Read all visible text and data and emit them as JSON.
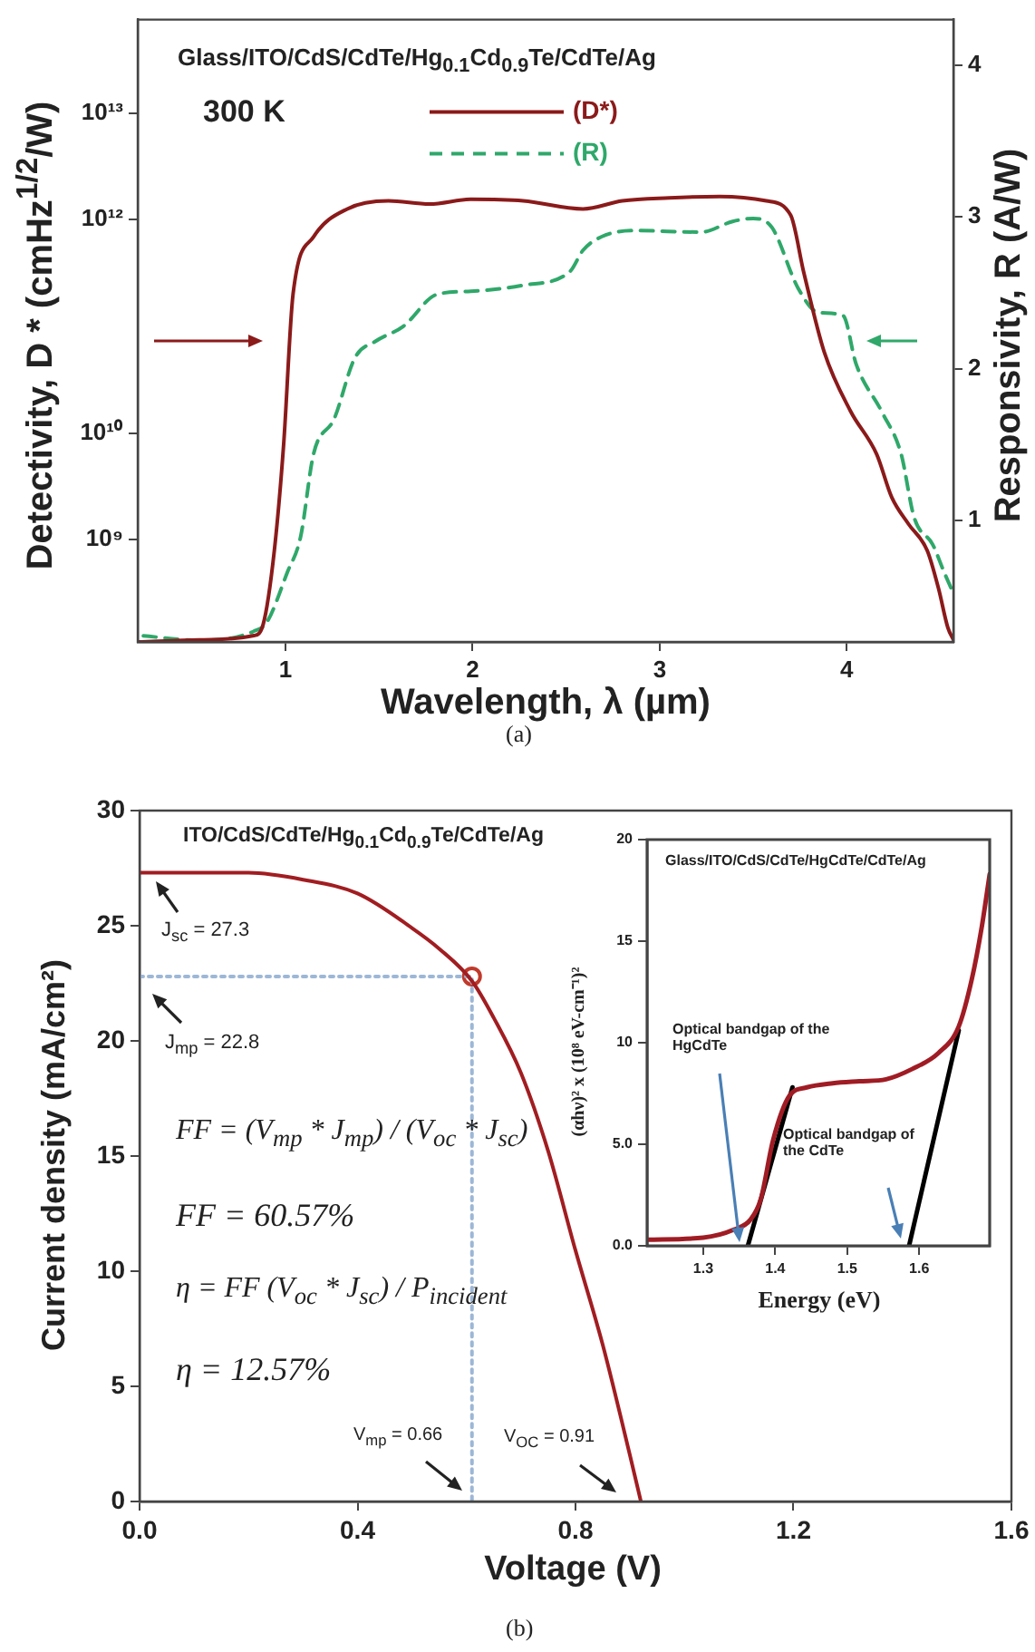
{
  "chart_data": [
    {
      "type": "line",
      "title": "Glass/ITO/CdS/CdTe/Hg$_{0.1}$Cd$_{0.9}$Te/CdTe/Ag",
      "xlabel": "Wavelength, λ (µm)",
      "ylabel": "Detectivity, D * (cmHz$^{1/2}$/W)",
      "y2label": "Responsivity, R (A/W)",
      "annotations": [
        "300 K",
        "(a)"
      ],
      "log": "y",
      "grid": false,
      "legend": "top",
      "marker": "none",
      "xlim": [
        0.21,
        4.57
      ],
      "xticks": [
        1,
        2,
        3,
        4
      ],
      "ylim": [
        110000000.0,
        75000000000000.0
      ],
      "yticks": [
        {
          "value": 1000000000.0,
          "label": "10⁹"
        },
        {
          "value": 10000000000.0,
          "label": "10¹⁰"
        },
        {
          "value": 1000000000000.0,
          "label": "10¹²"
        },
        {
          "value": 10000000000000.0,
          "label": "10¹³"
        }
      ],
      "y2lim": [
        0.2,
        4.3
      ],
      "y2ticks": [
        1,
        2,
        3,
        4
      ],
      "series": [
        {
          "name": "(D*)",
          "color": "#8b1a1a",
          "line_style": "solid",
          "x": [
            0.21,
            0.54,
            0.83,
            0.88,
            0.94,
            0.99,
            1.04,
            1.15,
            1.33,
            1.55,
            1.77,
            1.99,
            2.27,
            2.59,
            2.8,
            3.05,
            3.32,
            3.57,
            3.7,
            3.77,
            3.88,
            4.02,
            4.16,
            4.24,
            4.33,
            4.43,
            4.49,
            4.54,
            4.57
          ],
          "values": [
            110000000.0,
            115000000.0,
            126000000.0,
            160000000.0,
            790000000.0,
            7900000000.0,
            200000000000.0,
            690000000000.0,
            1260000000000.0,
            1500000000000.0,
            1400000000000.0,
            1550000000000.0,
            1500000000000.0,
            1260000000000.0,
            1500000000000.0,
            1600000000000.0,
            1650000000000.0,
            1500000000000.0,
            1100000000000.0,
            320000000000.0,
            57000000000.0,
            16000000000.0,
            6300000000.0,
            2500000000.0,
            1400000000.0,
            790000000.0,
            350000000.0,
            150000000.0,
            115000000.0
          ]
        },
        {
          "name": "(R)",
          "color": "#2fa86a",
          "line_style": "dashed",
          "axis": "y2",
          "x": [
            0.24,
            0.54,
            0.83,
            0.9,
            1.01,
            1.08,
            1.15,
            1.26,
            1.37,
            1.48,
            1.63,
            1.81,
            1.99,
            2.27,
            2.52,
            2.59,
            2.69,
            2.87,
            3.22,
            3.39,
            3.5,
            3.6,
            3.74,
            3.85,
            3.98,
            4.05,
            4.19,
            4.29,
            4.36,
            4.46,
            4.52,
            4.57
          ],
          "values": [
            0.24,
            0.21,
            0.27,
            0.33,
            0.66,
            0.89,
            1.44,
            1.67,
            2.07,
            2.18,
            2.28,
            2.49,
            2.51,
            2.55,
            2.64,
            2.78,
            2.87,
            2.91,
            2.9,
            2.97,
            2.99,
            2.93,
            2.53,
            2.37,
            2.35,
            2.03,
            1.71,
            1.44,
            1.02,
            0.84,
            0.66,
            0.52
          ]
        }
      ]
    },
    {
      "type": "line",
      "title": "ITO/CdS/CdTe/Hg$_{0.1}$Cd$_{0.9}$Te/CdTe/Ag",
      "xlabel": "Voltage (V)",
      "ylabel": "Current density (mA/cm²)",
      "annotations": [
        "J$_{sc}$ = 27.3",
        "J$_{mp}$ = 22.8",
        "FF = (V$_{mp}$ * J$_{mp}$) / (V$_{oc}$ * J$_{sc}$)",
        "FF = 60.57%",
        "η = FF (V$_{oc}$ * J$_{sc}$) / P$_{incident}$",
        "η = 12.57%",
        "V$_{mp}$ = 0.66",
        "V$_{OC}$ = 0.91",
        "(b)"
      ],
      "grid": false,
      "xlim": [
        0,
        1.6
      ],
      "xticks": [
        {
          "value": 0,
          "label": "0.0"
        },
        0.4,
        0.8,
        1.2,
        1.6
      ],
      "ylim": [
        0,
        30
      ],
      "yticks": [
        0,
        5,
        10,
        15,
        20,
        25,
        30
      ],
      "series": [
        {
          "color": "#a11d21",
          "marker": "none",
          "line_style": "solid",
          "x": [
            0,
            0.1,
            0.2,
            0.3,
            0.4,
            0.5,
            0.55,
            0.61,
            0.65,
            0.7,
            0.75,
            0.8,
            0.85,
            0.9,
            0.92
          ],
          "values": [
            27.3,
            27.3,
            27.3,
            27,
            26.4,
            24.9,
            24,
            22.6,
            21,
            18.6,
            15.2,
            10.9,
            6.8,
            2,
            0
          ]
        },
        {
          "type": "line",
          "color": "#9db7d6",
          "marker": "none",
          "line_style": "dotted",
          "x": [
            0,
            0.61,
            0.61
          ],
          "values": [
            22.8,
            22.8,
            0
          ]
        },
        {
          "type": "scatter",
          "color": "#c0392b",
          "marker": "circle",
          "x": [
            0.61
          ],
          "values": [
            22.8
          ]
        }
      ]
    },
    {
      "type": "line",
      "title": "Glass/ITO/CdS/CdTe/HgCdTe/CdTe/Ag",
      "xlabel": "Energy (eV)",
      "ylabel": "(αhν)² x (10⁸ eV-cm⁻¹)²",
      "annotations": [
        "Optical bandgap of the HgCdTe",
        "Optical bandgap of the CdTe"
      ],
      "grid": false,
      "xlim": [
        1.222,
        1.698
      ],
      "xticks": [
        1.3,
        1.4,
        1.5,
        1.6
      ],
      "ylim": [
        0,
        20
      ],
      "yticks": [
        {
          "value": 0,
          "label": "0.0"
        },
        {
          "value": 5,
          "label": "5.0"
        },
        10,
        15,
        20
      ],
      "series": [
        {
          "color": "#a01c24",
          "marker": "none",
          "line_style": "solid",
          "x": [
            1.222,
            1.3,
            1.343,
            1.366,
            1.38,
            1.397,
            1.42,
            1.444,
            1.48,
            1.517,
            1.554,
            1.59,
            1.627,
            1.655,
            1.673,
            1.687,
            1.698
          ],
          "values": [
            0.3,
            0.4,
            0.8,
            1.3,
            2.3,
            5.2,
            7.4,
            7.8,
            8,
            8.1,
            8.2,
            8.7,
            9.5,
            10.8,
            13.1,
            15.7,
            18.3
          ]
        },
        {
          "type": "line",
          "color": "#000000",
          "marker": "none",
          "line_style": "solid",
          "x": [
            1.362,
            1.424
          ],
          "values": [
            0,
            7.8
          ]
        },
        {
          "type": "line",
          "color": "#000000",
          "marker": "none",
          "line_style": "solid",
          "x": [
            1.586,
            1.655
          ],
          "values": [
            0,
            10.6
          ]
        }
      ]
    }
  ]
}
